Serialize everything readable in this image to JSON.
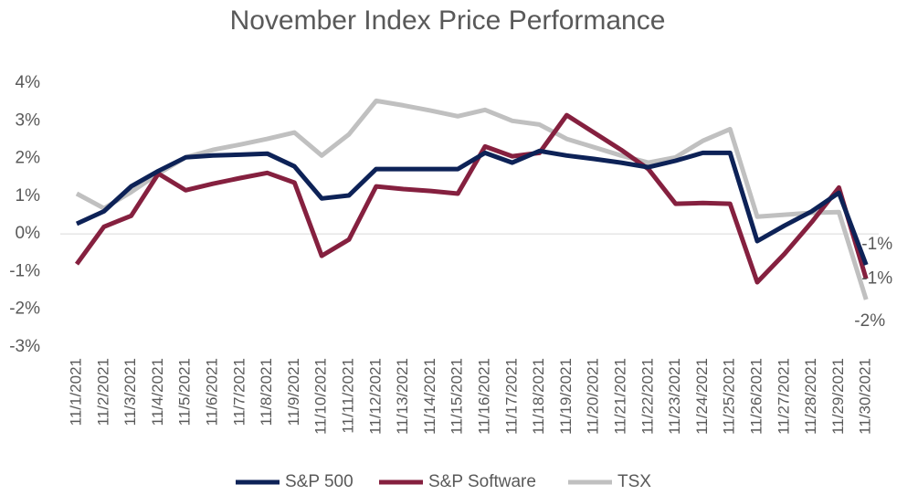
{
  "chart_data": {
    "type": "line",
    "title": "November Index Price Performance",
    "categories": [
      "11/1/2021",
      "11/2/2021",
      "11/3/2021",
      "11/4/2021",
      "11/5/2021",
      "11/6/2021",
      "11/7/2021",
      "11/8/2021",
      "11/9/2021",
      "11/10/2021",
      "11/11/2021",
      "11/12/2021",
      "11/13/2021",
      "11/14/2021",
      "11/15/2021",
      "11/16/2021",
      "11/17/2021",
      "11/18/2021",
      "11/19/2021",
      "11/20/2021",
      "11/21/2021",
      "11/22/2021",
      "11/23/2021",
      "11/24/2021",
      "11/25/2021",
      "11/26/2021",
      "11/27/2021",
      "11/28/2021",
      "11/29/2021",
      "11/30/2021"
    ],
    "series": [
      {
        "name": "S&P 500",
        "color": "#0d2257",
        "values": [
          0.27,
          0.6,
          1.26,
          1.67,
          2.03,
          2.08,
          2.1,
          2.13,
          1.79,
          0.94,
          1.02,
          1.72,
          1.72,
          1.72,
          1.72,
          2.15,
          1.89,
          2.2,
          2.08,
          1.99,
          1.89,
          1.77,
          1.94,
          2.15,
          2.15,
          -0.19,
          0.22,
          0.6,
          1.09,
          -0.82
        ],
        "value_labels": [
          null,
          null,
          null,
          null,
          null,
          null,
          null,
          null,
          null,
          null,
          null,
          null,
          null,
          null,
          null,
          null,
          null,
          null,
          null,
          null,
          null,
          null,
          null,
          null,
          null,
          null,
          null,
          null,
          null,
          "-1%"
        ]
      },
      {
        "name": "S&P Software",
        "color": "#85203f",
        "values": [
          -0.8,
          0.19,
          0.48,
          1.6,
          1.16,
          1.33,
          1.48,
          1.62,
          1.36,
          -0.58,
          -0.15,
          1.26,
          1.19,
          1.14,
          1.07,
          2.32,
          2.06,
          2.15,
          3.15,
          2.69,
          2.23,
          1.72,
          0.8,
          0.82,
          0.8,
          -1.28,
          -0.53,
          0.31,
          1.23,
          -1.19
        ],
        "value_labels": [
          null,
          null,
          null,
          null,
          null,
          null,
          null,
          null,
          null,
          null,
          null,
          null,
          null,
          null,
          null,
          null,
          null,
          null,
          null,
          null,
          null,
          null,
          null,
          null,
          null,
          null,
          null,
          null,
          null,
          "-1%"
        ]
      },
      {
        "name": "TSX",
        "color": "#c0c0c0",
        "values": [
          1.07,
          0.68,
          1.11,
          1.6,
          2.03,
          2.23,
          2.37,
          2.52,
          2.69,
          2.08,
          2.64,
          3.53,
          3.41,
          3.27,
          3.12,
          3.29,
          3.0,
          2.9,
          2.52,
          2.3,
          2.08,
          1.89,
          2.03,
          2.47,
          2.78,
          0.46,
          0.51,
          0.56,
          0.58,
          -1.74
        ],
        "value_labels": [
          null,
          null,
          null,
          null,
          null,
          null,
          null,
          null,
          null,
          null,
          null,
          null,
          null,
          null,
          null,
          null,
          null,
          null,
          null,
          null,
          null,
          null,
          null,
          null,
          null,
          null,
          null,
          null,
          null,
          "-2%"
        ]
      }
    ],
    "ylim": [
      -3,
      4
    ],
    "yticks": [
      {
        "value": 4,
        "label": "4%"
      },
      {
        "value": 3,
        "label": "3%"
      },
      {
        "value": 2,
        "label": "2%"
      },
      {
        "value": 1,
        "label": "1%"
      },
      {
        "value": 0,
        "label": "0%"
      },
      {
        "value": -1,
        "label": "-1%"
      },
      {
        "value": -2,
        "label": "-2%"
      },
      {
        "value": -3,
        "label": "-3%"
      }
    ],
    "grid": false,
    "legend": "bottom"
  }
}
